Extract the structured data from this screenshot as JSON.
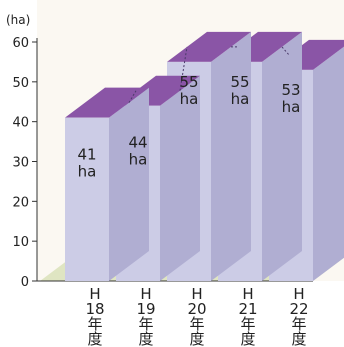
{
  "chart_data": {
    "type": "bar",
    "style": "3d",
    "unit": "(ha)",
    "categories": [
      [
        "H",
        "18",
        "年",
        "度"
      ],
      [
        "H",
        "19",
        "年",
        "度"
      ],
      [
        "H",
        "20",
        "年",
        "度"
      ],
      [
        "H",
        "21",
        "年",
        "度"
      ],
      [
        "H",
        "22",
        "年",
        "度"
      ]
    ],
    "values": [
      41,
      44,
      55,
      55,
      53
    ],
    "labels": [
      [
        "41",
        "ha"
      ],
      [
        "44",
        "ha"
      ],
      [
        "55",
        "ha"
      ],
      [
        "55",
        "ha"
      ],
      [
        "53",
        "ha"
      ]
    ],
    "yticks": [
      0,
      10,
      20,
      30,
      40,
      50,
      60
    ],
    "ylim": [
      0,
      60
    ],
    "colors": {
      "front": "#cccce6",
      "side": "#b0aed2",
      "top": "#8a55a6",
      "floor": "#dfe5c2",
      "background": "#fbf8f2"
    }
  }
}
